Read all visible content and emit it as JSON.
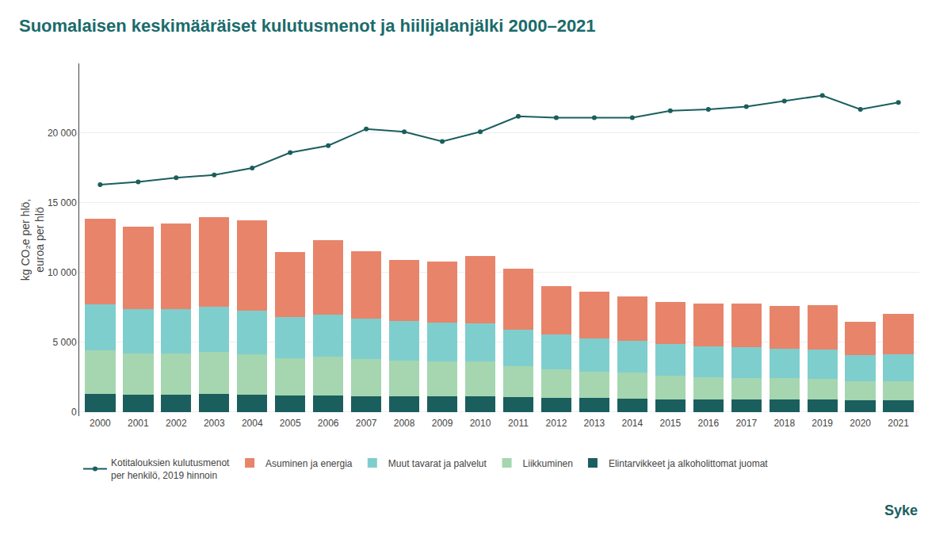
{
  "chart_data": {
    "type": "bar",
    "stacked": true,
    "title": "Suomalaisen keskimääräiset kulutusmenot ja hiilijalanjälki 2000–2021",
    "ylabel": "kg CO₂e per hlö,\neuroa per hlö",
    "categories": [
      "2000",
      "2001",
      "2002",
      "2003",
      "2004",
      "2005",
      "2006",
      "2007",
      "2008",
      "2009",
      "2010",
      "2011",
      "2012",
      "2013",
      "2014",
      "2015",
      "2016",
      "2017",
      "2018",
      "2019",
      "2020",
      "2021"
    ],
    "series": [
      {
        "name": "Elintarvikkeet ja alkoholittomat juomat",
        "type": "bar",
        "color": "#1b5e5e",
        "values": [
          1300,
          1250,
          1250,
          1300,
          1250,
          1200,
          1200,
          1150,
          1150,
          1100,
          1100,
          1050,
          1000,
          1000,
          950,
          900,
          900,
          900,
          900,
          900,
          850,
          850
        ]
      },
      {
        "name": "Liikkuminen",
        "type": "bar",
        "color": "#a5d6b0",
        "values": [
          3100,
          2950,
          2950,
          3000,
          2900,
          2650,
          2750,
          2650,
          2550,
          2500,
          2500,
          2250,
          2050,
          1900,
          1850,
          1700,
          1600,
          1550,
          1550,
          1500,
          1350,
          1350
        ]
      },
      {
        "name": "Muut tavarat ja palvelut",
        "type": "bar",
        "color": "#7ecece",
        "values": [
          3300,
          3200,
          3200,
          3250,
          3100,
          2950,
          3050,
          2900,
          2800,
          2800,
          2750,
          2600,
          2500,
          2400,
          2300,
          2250,
          2200,
          2200,
          2100,
          2050,
          1850,
          1950
        ]
      },
      {
        "name": "Asuminen ja energia",
        "type": "bar",
        "color": "#e8846a",
        "values": [
          6150,
          5900,
          6100,
          6400,
          6500,
          4650,
          5350,
          4800,
          4400,
          4400,
          4850,
          4350,
          3450,
          3350,
          3200,
          3050,
          3050,
          3100,
          3050,
          3200,
          2400,
          2900
        ]
      },
      {
        "name": "Kotitalouksien kulutusmenot\nper henkilö, 2019 hinnoin",
        "type": "line",
        "marker": "circle",
        "color": "#1b5e5e",
        "values": [
          16300,
          16500,
          16800,
          17000,
          17500,
          18600,
          19100,
          20300,
          20100,
          19400,
          20100,
          21200,
          21100,
          21100,
          21100,
          21600,
          21700,
          21900,
          22300,
          22700,
          21700,
          22200
        ]
      }
    ],
    "ylim": [
      -300,
      25000
    ],
    "yticks": [
      0,
      {
        "value": 5000,
        "label": "5 000"
      },
      {
        "value": 10000,
        "label": "10 000"
      },
      {
        "value": 15000,
        "label": "15 000"
      },
      {
        "value": 20000,
        "label": "20 000"
      }
    ],
    "grid": true,
    "legend": "bottom",
    "annotations": [
      {
        "text": "Syke"
      }
    ]
  }
}
